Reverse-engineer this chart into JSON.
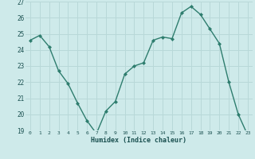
{
  "x": [
    0,
    1,
    2,
    3,
    4,
    5,
    6,
    7,
    8,
    9,
    10,
    11,
    12,
    13,
    14,
    15,
    16,
    17,
    18,
    19,
    20,
    21,
    22,
    23
  ],
  "y": [
    24.6,
    24.9,
    24.2,
    22.7,
    21.9,
    20.7,
    19.6,
    18.8,
    20.2,
    20.8,
    22.5,
    23.0,
    23.2,
    24.6,
    24.8,
    24.7,
    26.3,
    26.7,
    26.2,
    25.3,
    24.4,
    22.0,
    20.0,
    18.7
  ],
  "line_color": "#2e7d6e",
  "marker": "D",
  "marker_size": 2.0,
  "bg_color": "#ceeaea",
  "grid_color": "#b8d8d8",
  "xlabel": "Humidex (Indice chaleur)",
  "ylim": [
    19,
    27
  ],
  "yticks": [
    19,
    20,
    21,
    22,
    23,
    24,
    25,
    26,
    27
  ],
  "xticks": [
    0,
    1,
    2,
    3,
    4,
    5,
    6,
    7,
    8,
    9,
    10,
    11,
    12,
    13,
    14,
    15,
    16,
    17,
    18,
    19,
    20,
    21,
    22,
    23
  ]
}
